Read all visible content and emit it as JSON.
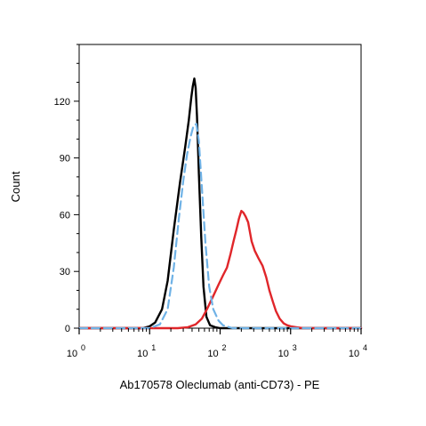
{
  "chart_data": {
    "type": "line",
    "title": "",
    "xlabel": "Ab170578 Oleclumab (anti-CD73) - PE",
    "ylabel": "Count",
    "x_scale": "log",
    "xlim": [
      1,
      10000
    ],
    "ylim": [
      0,
      150
    ],
    "grid": false,
    "legend": "none",
    "x_ticks": [
      {
        "value": 1,
        "base": "10",
        "exp": "0"
      },
      {
        "value": 10,
        "base": "10",
        "exp": "1"
      },
      {
        "value": 100,
        "base": "10",
        "exp": "2"
      },
      {
        "value": 1000,
        "base": "10",
        "exp": "3"
      },
      {
        "value": 10000,
        "base": "10",
        "exp": "4"
      }
    ],
    "y_ticks": [
      0,
      30,
      60,
      90,
      120
    ],
    "series": [
      {
        "color": "#000000",
        "dashed": false,
        "x": [
          1,
          8,
          10,
          12,
          15,
          18,
          22,
          27,
          32,
          36,
          39,
          41,
          43,
          45,
          47,
          50,
          54,
          58,
          64,
          72,
          85,
          100,
          200,
          1000,
          10000
        ],
        "y": [
          0,
          0,
          1,
          3,
          10,
          25,
          52,
          77,
          96,
          110,
          122,
          128,
          132,
          127,
          112,
          82,
          48,
          22,
          6,
          1.5,
          0.5,
          0,
          0,
          0,
          0
        ]
      },
      {
        "color": "#6fb2e6",
        "dashed": true,
        "x": [
          1,
          10,
          14,
          18,
          22,
          26,
          30,
          34,
          38,
          42,
          46,
          50,
          55,
          62,
          70,
          80,
          95,
          110,
          150,
          1000,
          10000
        ],
        "y": [
          0,
          0,
          2,
          10,
          32,
          58,
          78,
          92,
          101,
          107,
          108,
          99,
          75,
          45,
          22,
          10,
          4,
          1.5,
          0,
          0,
          0
        ]
      },
      {
        "color": "#e0262a",
        "dashed": false,
        "x": [
          1,
          10,
          25,
          35,
          45,
          55,
          65,
          80,
          95,
          110,
          125,
          140,
          155,
          170,
          185,
          200,
          215,
          230,
          250,
          280,
          310,
          350,
          400,
          450,
          500,
          560,
          620,
          700,
          800,
          900,
          1000,
          1200,
          1500,
          2000,
          10000
        ],
        "y": [
          0,
          0,
          0,
          0.5,
          2,
          5,
          10,
          17,
          23,
          28,
          32,
          39,
          46,
          52,
          58,
          62,
          61,
          59,
          56,
          46,
          41,
          37,
          33,
          27,
          20,
          14,
          9,
          5,
          2.5,
          1.5,
          1,
          0.5,
          0,
          0,
          0
        ]
      }
    ]
  }
}
